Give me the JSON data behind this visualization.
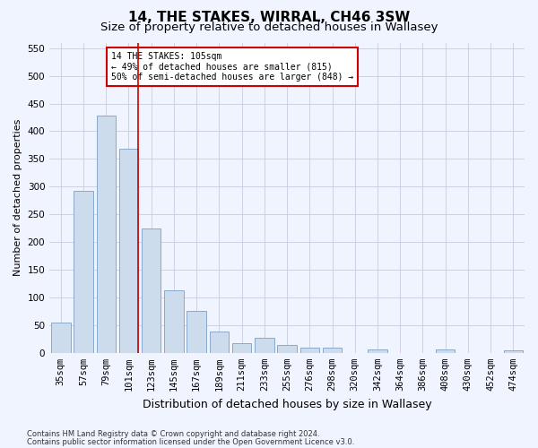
{
  "title": "14, THE STAKES, WIRRAL, CH46 3SW",
  "subtitle": "Size of property relative to detached houses in Wallasey",
  "xlabel": "Distribution of detached houses by size in Wallasey",
  "ylabel": "Number of detached properties",
  "categories": [
    "35sqm",
    "57sqm",
    "79sqm",
    "101sqm",
    "123sqm",
    "145sqm",
    "167sqm",
    "189sqm",
    "211sqm",
    "233sqm",
    "255sqm",
    "276sqm",
    "298sqm",
    "320sqm",
    "342sqm",
    "364sqm",
    "386sqm",
    "408sqm",
    "430sqm",
    "452sqm",
    "474sqm"
  ],
  "values": [
    55,
    292,
    428,
    368,
    225,
    113,
    76,
    38,
    17,
    27,
    15,
    10,
    10,
    0,
    6,
    0,
    0,
    6,
    0,
    0,
    4
  ],
  "bar_color": "#ccdcec",
  "bar_edge_color": "#88aacc",
  "vline_color": "#cc0000",
  "vline_x_index": 3,
  "annotation_text": "14 THE STAKES: 105sqm\n← 49% of detached houses are smaller (815)\n50% of semi-detached houses are larger (848) →",
  "annotation_box_color": "#ffffff",
  "annotation_box_edge_color": "#cc0000",
  "ylim": [
    0,
    560
  ],
  "yticks": [
    0,
    50,
    100,
    150,
    200,
    250,
    300,
    350,
    400,
    450,
    500,
    550
  ],
  "title_fontsize": 11,
  "subtitle_fontsize": 9.5,
  "xlabel_fontsize": 9,
  "ylabel_fontsize": 8,
  "tick_fontsize": 7.5,
  "annot_fontsize": 7,
  "footer_line1": "Contains HM Land Registry data © Crown copyright and database right 2024.",
  "footer_line2": "Contains public sector information licensed under the Open Government Licence v3.0.",
  "background_color": "#f0f4ff",
  "grid_color": "#c8cce0"
}
